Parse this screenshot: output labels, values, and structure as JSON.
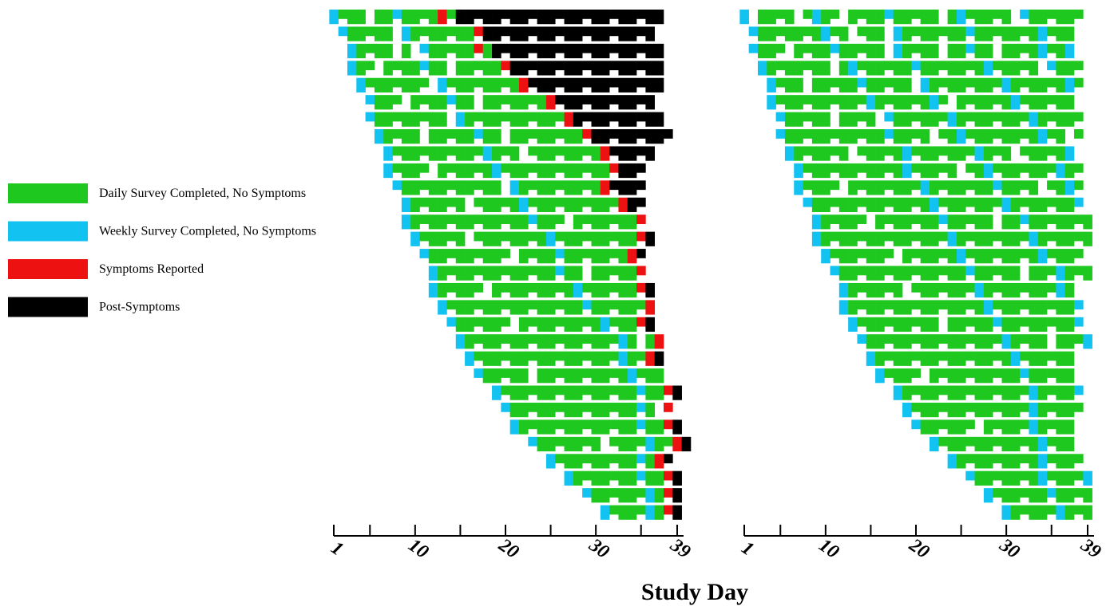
{
  "chart_data": {
    "type": "raster",
    "x_label": "Study Day",
    "xlim": [
      1,
      39
    ],
    "xticks": [
      1,
      10,
      20,
      30,
      39
    ],
    "xminor": [
      5,
      15,
      25,
      35
    ],
    "series": [
      {
        "name": "Daily Survey Completed, No Symptoms",
        "color": "#1ec81e"
      },
      {
        "name": "Weekly Survey Completed, No Symptoms",
        "color": "#12c2f0"
      },
      {
        "name": "Symptoms Reported",
        "color": "#ee1111"
      },
      {
        "name": "Post-Symptoms",
        "color": "#000000"
      }
    ],
    "panels": [
      {
        "rows": [
          "1000.00100002033333333333333333333333",
          ".100000.1000000023333333333333333333",
          "..10000.0.100000203333333333333333333",
          "..100.0000100.00000233333333333333333",
          "...10000000.1000000002333333333333333",
          "....1000.0000100.0000000233333333333",
          "....100000000.10000000000023333333333",
          ".....10000.00000100.000000002333333333",
          "......100000000001000.00000000233333",
          "......10000.00000010000000000002333",
          ".......100000000000.100000000023333",
          "........1000000.0000010000000000233",
          "........100000000000001000.00000002",
          ".........100000.00000000100000000023",
          "..........1000000000.00001000000023",
          "...........10000000000000100.000002",
          "...........100000.000000000100000023",
          "............100000000000000010000002",
          ".............1000000.000000000100023",
          "..............10000000000000000010.02",
          "...............1000000000000000010023",
          "................100000.00000000001000",
          "..................100000000000000010023",
          "...................10000000000000010.2",
          "....................1000000000000010023",
          "......................10000000.000010023",
          "........................10000000001023",
          "..........................1000000010023",
          "............................10000001023",
          "..............................100001023"
        ]
      },
      {
        "rows": [
          "1.0000.0100.0000100000.0100000.1000000",
          ".10000000100.000.10000000100000001000",
          ".1000.0000100000.10000.00100.00001001",
          "..10000000.0100000010000000100000.1000",
          "...1000.00000100000.100000000100000010",
          "...10000000000100000010.0000001000000",
          "....100000.0000.1000000100000000100000",
          "....10000000000010000.00100000000100.0",
          ".....1000000.00000100000001000.000001",
          "......100000000000100000.0010000000100",
          "......10000.000000001000000010000.0010",
          ".......1000000000000010000000100000001",
          "........100000.0000000100000.0010000000",
          "........1000000000000001000000001000000",
          ".........10000000.00000010000000010000",
          "..........100000000000000100000.0001000",
          "...........1000000.000000010000000010",
          "...........100000000000000010000000001",
          "............1000000000.000001000000001",
          ".............100000000000000010000.0001",
          "..............10000000000000001000000",
          "...............10000.0000000000100000",
          ".................100000000000000100001",
          "..................10000000000000100000",
          "...................1000000.0000010000",
          ".....................1000000000001000",
          ".......................100000000010000",
          ".........................10000000100001",
          "...........................100000010000",
          ".............................1000001000"
        ]
      }
    ]
  }
}
